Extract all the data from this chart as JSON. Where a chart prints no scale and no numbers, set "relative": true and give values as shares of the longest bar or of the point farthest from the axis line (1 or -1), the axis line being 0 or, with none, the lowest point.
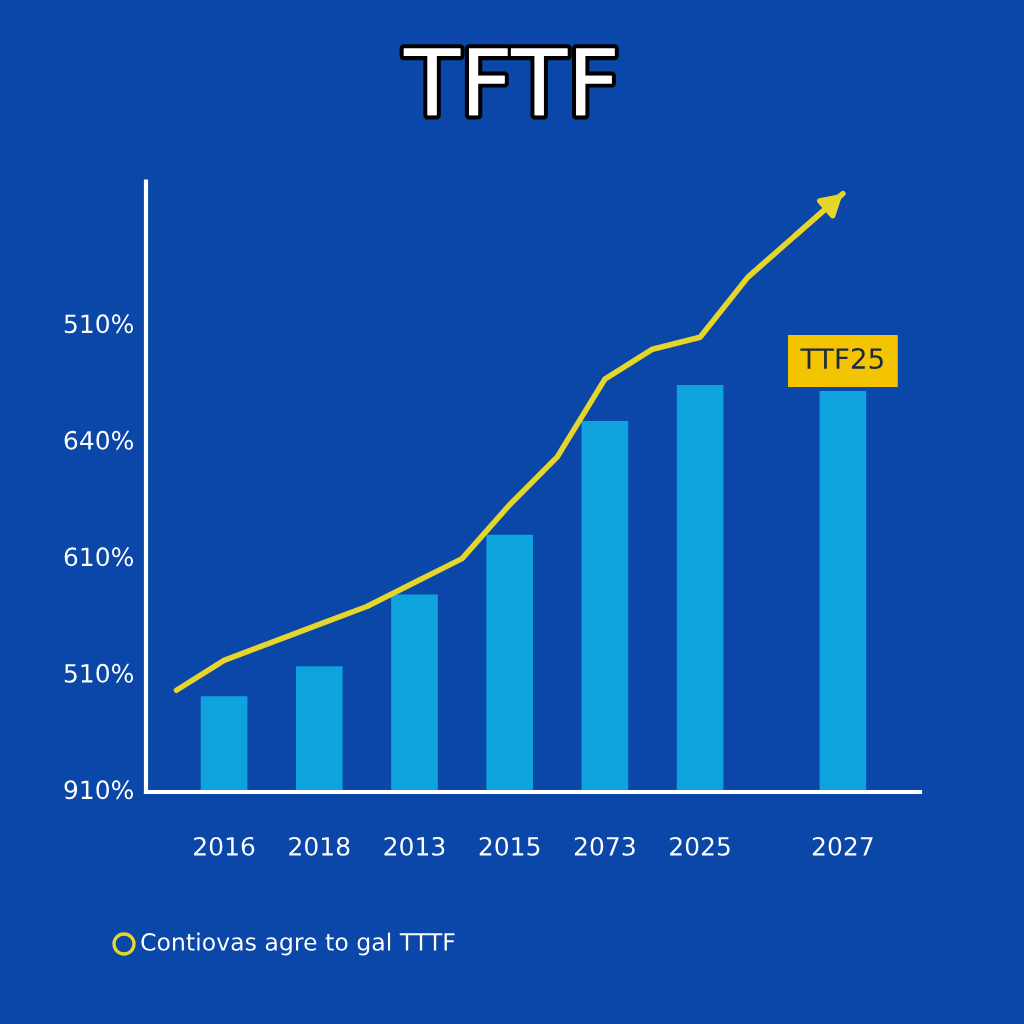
{
  "chart_data": {
    "type": "bar",
    "title": "TFTF",
    "relative": true,
    "categories": [
      null,
      "2016",
      null,
      "2018",
      null,
      "2013",
      null,
      "2015",
      null,
      "2073",
      null,
      "2025",
      null,
      null,
      "2027"
    ],
    "series": [
      {
        "color": "#0ea3dc",
        "values": [
          null,
          0.16,
          null,
          0.21,
          null,
          0.33,
          null,
          0.43,
          null,
          0.62,
          null,
          0.68,
          null,
          null,
          0.67
        ]
      },
      {
        "type": "line",
        "color": "#e6d52a",
        "values": [
          0.17,
          0.22,
          0.25,
          0.28,
          0.31,
          0.35,
          0.39,
          0.48,
          0.56,
          0.69,
          0.74,
          0.76,
          0.86,
          0.93,
          1
        ]
      }
    ],
    "annotations": [
      "510%",
      "640%",
      "610%",
      "510%",
      "910%",
      {
        "text": "TTF25",
        "x": "2027",
        "y": 0.67
      },
      "Contiovas agre to gal TTTF"
    ],
    "grid": false
  }
}
